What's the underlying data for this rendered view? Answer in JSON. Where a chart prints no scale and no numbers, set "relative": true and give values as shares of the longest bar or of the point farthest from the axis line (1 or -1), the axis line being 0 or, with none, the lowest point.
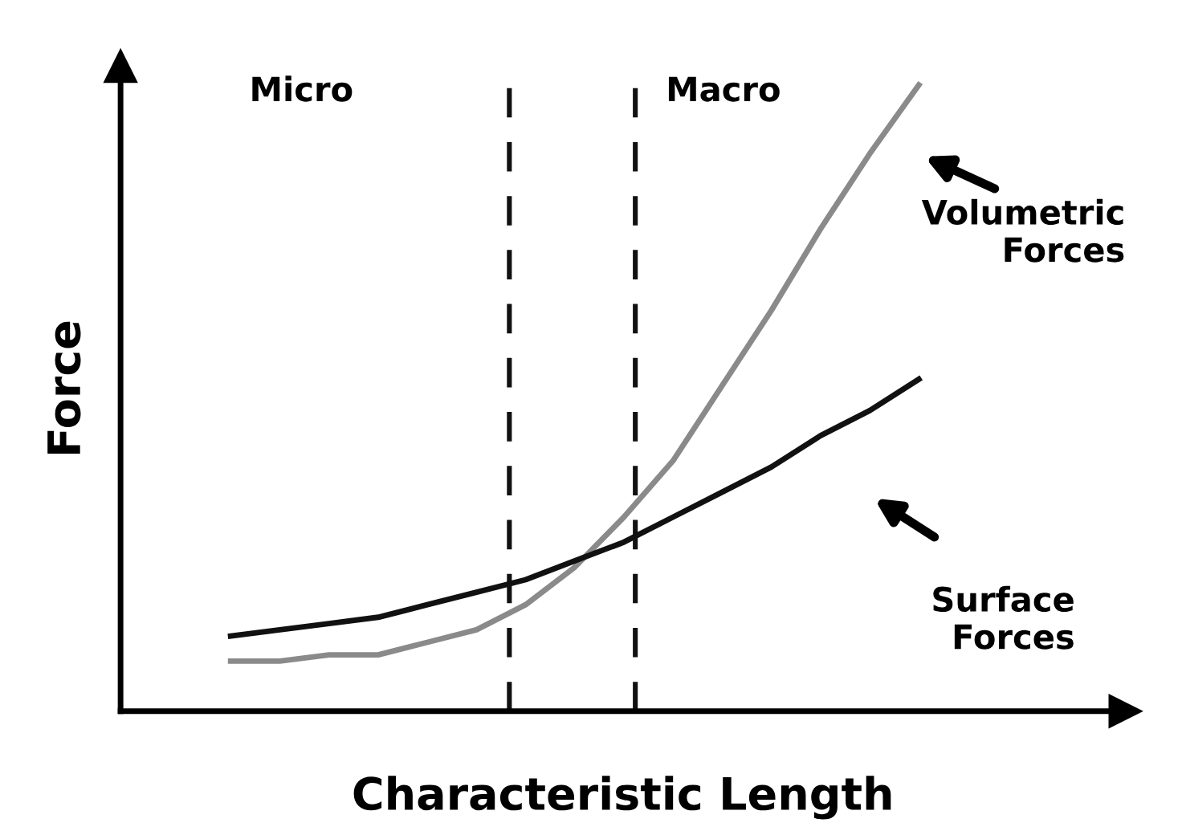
{
  "chart_data": {
    "type": "line",
    "relative": true,
    "xlabel": "Characteristic Length",
    "ylabel": "Force",
    "categories": [
      null,
      null,
      null,
      null,
      null,
      null,
      null,
      null,
      null,
      null,
      null,
      null,
      null,
      null,
      null
    ],
    "legend": false,
    "marker": "none",
    "line_style": "solid",
    "series": [
      {
        "name": "Volumetric Forces",
        "color": "#8a8a8a",
        "values": [
          0.08,
          0.08,
          0.09,
          0.09,
          0.11,
          0.13,
          0.17,
          0.23,
          0.31,
          0.4,
          0.52,
          0.64,
          0.77,
          0.89,
          1
        ]
      },
      {
        "name": "Surface Forces",
        "color": "#111111",
        "values": [
          0.12,
          0.13,
          0.14,
          0.15,
          0.17,
          0.19,
          0.21,
          0.24,
          0.27,
          0.31,
          0.35,
          0.39,
          0.44,
          0.48,
          0.53
        ]
      }
    ],
    "annotations": [
      "Micro",
      "Macro"
    ]
  }
}
